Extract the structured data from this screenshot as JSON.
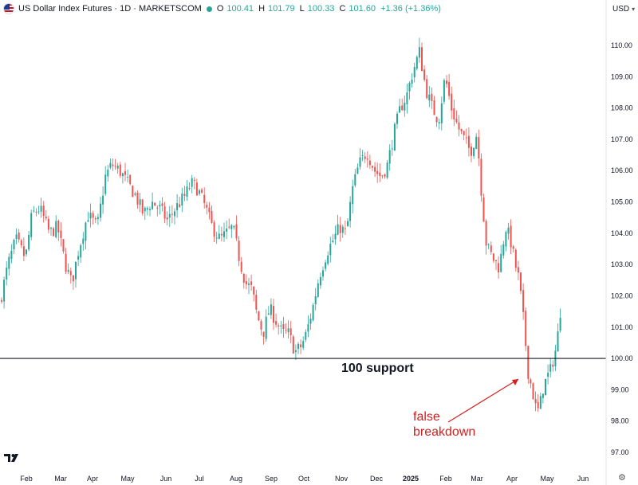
{
  "header": {
    "symbol_title": "US Dollar Index Futures · 1D · MARKETSCOM",
    "open_label": "O",
    "open": "100.41",
    "high_label": "H",
    "high": "101.79",
    "low_label": "L",
    "low": "100.33",
    "close_label": "C",
    "close": "101.60",
    "change": "+1.36 (+1.36%)",
    "currency": "USD"
  },
  "colors": {
    "up": "#26a69a",
    "down": "#ef5350",
    "support_line": "#131722",
    "annotation": "#d41e1e"
  },
  "chart_data": {
    "type": "candlestick",
    "y_range": [
      96.6,
      111.2
    ],
    "y_ticks": [
      "110.00",
      "109.00",
      "108.00",
      "107.00",
      "106.00",
      "105.00",
      "104.00",
      "103.00",
      "102.00",
      "101.00",
      "100.00",
      "99.00",
      "98.00",
      "97.00"
    ],
    "x_ticks": [
      "Feb",
      "Mar",
      "Apr",
      "May",
      "Jun",
      "Jul",
      "Aug",
      "Sep",
      "Oct",
      "Nov",
      "Dec",
      "2025",
      "Feb",
      "Mar",
      "Apr",
      "May",
      "Jun"
    ],
    "support_level": 100.0,
    "support_label": "100 support",
    "annotation": {
      "lines": [
        "false",
        "breakdown"
      ],
      "target_price": 99.2
    },
    "price_path": [
      [
        0,
        101.8
      ],
      [
        10,
        103.0
      ],
      [
        20,
        103.8
      ],
      [
        32,
        103.2
      ],
      [
        40,
        104.6
      ],
      [
        50,
        104.8
      ],
      [
        62,
        104.0
      ],
      [
        72,
        104.2
      ],
      [
        82,
        103.0
      ],
      [
        90,
        102.4
      ],
      [
        98,
        103.4
      ],
      [
        110,
        104.6
      ],
      [
        122,
        104.2
      ],
      [
        132,
        105.8
      ],
      [
        140,
        106.2
      ],
      [
        150,
        106.0
      ],
      [
        160,
        105.6
      ],
      [
        170,
        105.2
      ],
      [
        180,
        104.6
      ],
      [
        190,
        105.0
      ],
      [
        200,
        104.8
      ],
      [
        210,
        104.4
      ],
      [
        220,
        104.8
      ],
      [
        232,
        105.2
      ],
      [
        240,
        105.6
      ],
      [
        248,
        105.4
      ],
      [
        258,
        104.8
      ],
      [
        266,
        104.2
      ],
      [
        276,
        103.8
      ],
      [
        284,
        104.0
      ],
      [
        292,
        104.2
      ],
      [
        300,
        103.2
      ],
      [
        308,
        102.4
      ],
      [
        316,
        102.2
      ],
      [
        322,
        101.4
      ],
      [
        330,
        100.8
      ],
      [
        338,
        101.6
      ],
      [
        346,
        101.2
      ],
      [
        354,
        100.8
      ],
      [
        362,
        100.8
      ],
      [
        370,
        100.2
      ],
      [
        378,
        100.4
      ],
      [
        384,
        100.8
      ],
      [
        392,
        101.6
      ],
      [
        400,
        102.6
      ],
      [
        410,
        103.4
      ],
      [
        418,
        103.8
      ],
      [
        426,
        104.2
      ],
      [
        434,
        104.0
      ],
      [
        442,
        105.4
      ],
      [
        450,
        106.2
      ],
      [
        460,
        106.6
      ],
      [
        470,
        106.0
      ],
      [
        478,
        105.8
      ],
      [
        486,
        106.2
      ],
      [
        494,
        107.2
      ],
      [
        502,
        108.0
      ],
      [
        510,
        108.4
      ],
      [
        518,
        109.2
      ],
      [
        526,
        109.8
      ],
      [
        534,
        108.6
      ],
      [
        542,
        108.0
      ],
      [
        550,
        107.6
      ],
      [
        558,
        109.0
      ],
      [
        566,
        108.0
      ],
      [
        574,
        107.4
      ],
      [
        582,
        107.0
      ],
      [
        590,
        106.6
      ],
      [
        598,
        107.2
      ],
      [
        604,
        105.2
      ],
      [
        610,
        103.6
      ],
      [
        618,
        103.2
      ],
      [
        626,
        102.9
      ],
      [
        634,
        104.2
      ],
      [
        640,
        103.8
      ],
      [
        646,
        103.0
      ],
      [
        650,
        102.6
      ],
      [
        654,
        101.8
      ],
      [
        658,
        100.8
      ],
      [
        662,
        99.6
      ],
      [
        668,
        98.9
      ],
      [
        672,
        98.4
      ],
      [
        676,
        98.3
      ],
      [
        680,
        99.0
      ],
      [
        686,
        99.4
      ],
      [
        690,
        99.6
      ],
      [
        694,
        100.0
      ],
      [
        698,
        100.4
      ],
      [
        703,
        101.6
      ]
    ]
  }
}
